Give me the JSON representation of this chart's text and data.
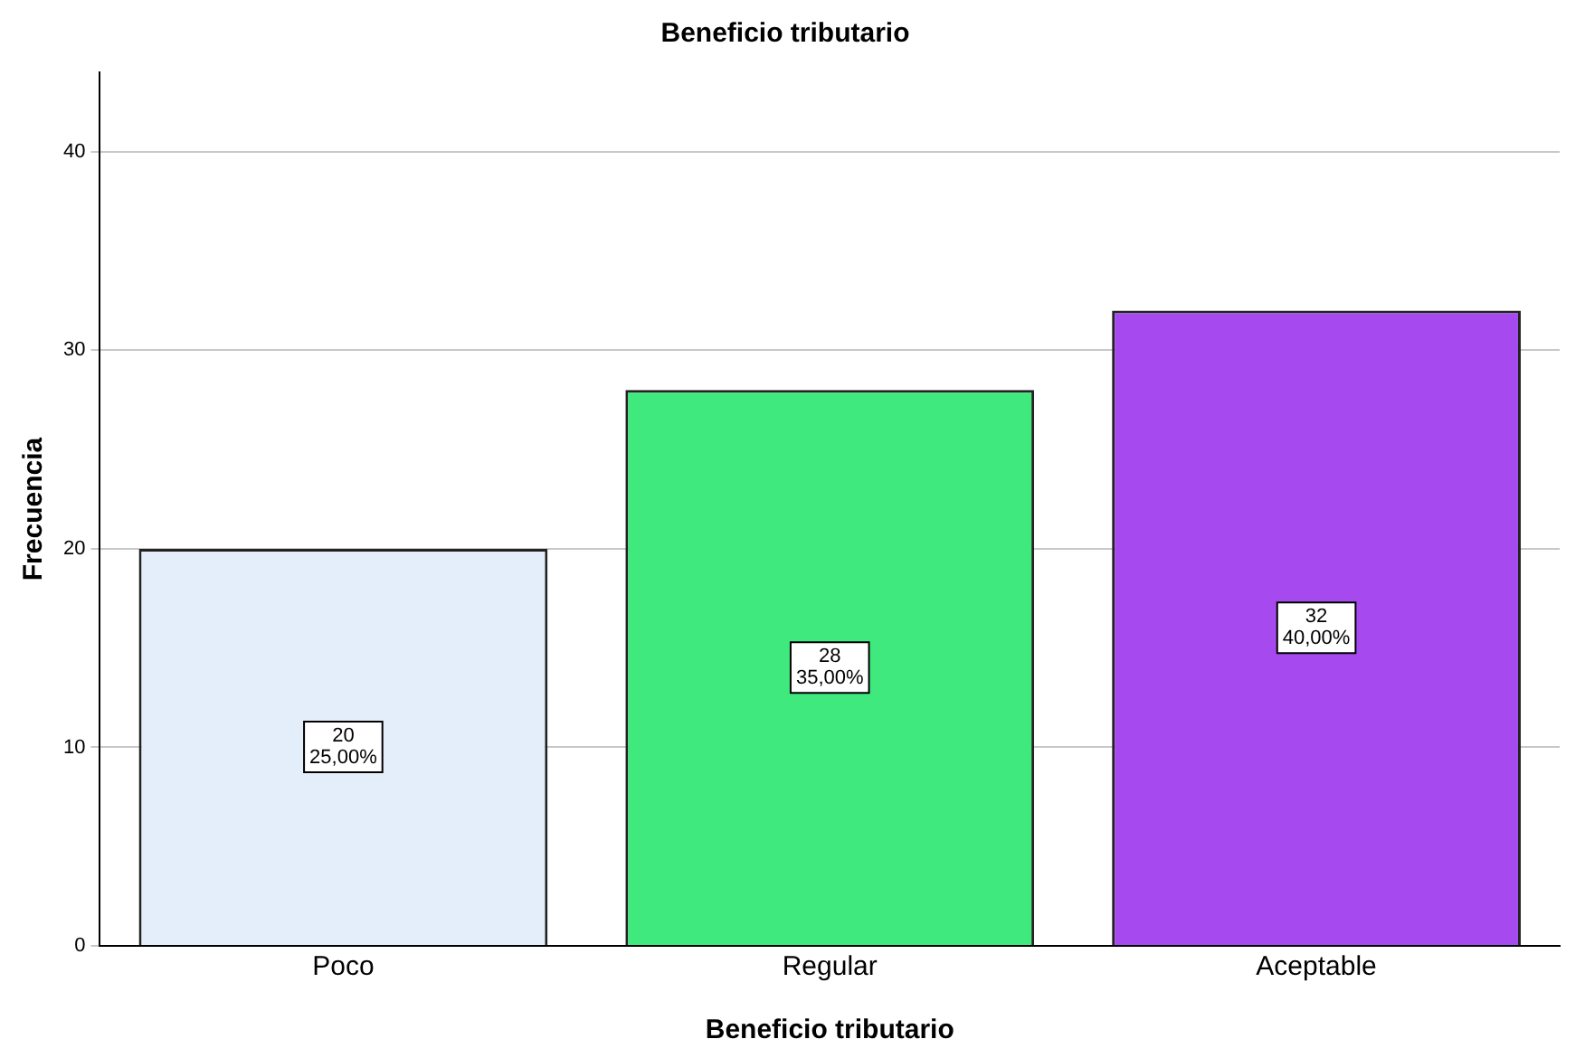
{
  "chart_data": {
    "type": "bar",
    "title": "Beneficio tributario",
    "xlabel": "Beneficio tributario",
    "ylabel": "Frecuencia",
    "categories": [
      "Poco",
      "Regular",
      "Aceptable"
    ],
    "values": [
      20,
      28,
      32
    ],
    "colors": [
      "#e3eefa",
      "#3fe97d",
      "#a64af0"
    ],
    "value_labels": [
      "20\n25,00%",
      "28\n35,00%",
      "32\n40,00%"
    ],
    "ylim": [
      0,
      44
    ],
    "yticks": [
      0,
      10,
      20,
      30,
      40
    ],
    "grid": "y",
    "legend": false
  }
}
